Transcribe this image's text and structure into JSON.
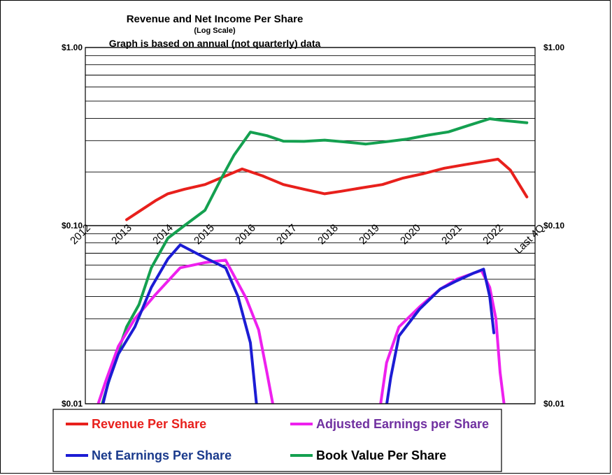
{
  "chart_data": {
    "type": "line",
    "title": "Revenue  and Net Income  Per Share",
    "subtitle": "(Log  Scale)",
    "note": "Graph is based on annual (not quarterly) data",
    "y_scale": "log",
    "ylim": [
      0.01,
      1.0
    ],
    "y_ticks": [
      {
        "value": 1.0,
        "label": "$1.00"
      },
      {
        "value": 0.1,
        "label": "$0.10"
      },
      {
        "value": 0.01,
        "label": "$0.01"
      }
    ],
    "categories": [
      "2012",
      "2013",
      "2014",
      "2015",
      "2016",
      "2017",
      "2018",
      "2019",
      "2020",
      "2021",
      "2022",
      "Last 4Q"
    ],
    "grid": true,
    "legend_position": "bottom",
    "series": [
      {
        "name": "Revenue Per Share",
        "color": "#e8201c",
        "text_color": "#e8201c",
        "points": [
          [
            1.0,
            0.108
          ],
          [
            1.3,
            0.12
          ],
          [
            1.7,
            0.138
          ],
          [
            2.0,
            0.151
          ],
          [
            2.4,
            0.16
          ],
          [
            2.9,
            0.17
          ],
          [
            3.3,
            0.186
          ],
          [
            3.8,
            0.208
          ],
          [
            4.3,
            0.19
          ],
          [
            4.8,
            0.17
          ],
          [
            5.3,
            0.16
          ],
          [
            5.8,
            0.151
          ],
          [
            6.2,
            0.156
          ],
          [
            6.7,
            0.163
          ],
          [
            7.2,
            0.17
          ],
          [
            7.7,
            0.185
          ],
          [
            8.2,
            0.196
          ],
          [
            8.7,
            0.21
          ],
          [
            9.2,
            0.22
          ],
          [
            9.7,
            0.23
          ],
          [
            10.0,
            0.236
          ],
          [
            10.3,
            0.205
          ],
          [
            10.7,
            0.145
          ]
        ]
      },
      {
        "name": "Adjusted Earnings per Share",
        "color": "#ee20ee",
        "text_color": "#7030a0",
        "segments": [
          [
            [
              0.3,
              0.0098
            ],
            [
              0.5,
              0.0135
            ],
            [
              0.8,
              0.021
            ],
            [
              1.2,
              0.03
            ],
            [
              1.7,
              0.041
            ],
            [
              2.3,
              0.058
            ],
            [
              2.9,
              0.062
            ],
            [
              3.4,
              0.064
            ],
            [
              3.9,
              0.039
            ],
            [
              4.2,
              0.026
            ],
            [
              4.4,
              0.015
            ],
            [
              4.55,
              0.0098
            ]
          ],
          [
            [
              7.15,
              0.0098
            ],
            [
              7.3,
              0.017
            ],
            [
              7.6,
              0.027
            ],
            [
              8.1,
              0.035
            ],
            [
              8.6,
              0.044
            ],
            [
              9.0,
              0.05
            ],
            [
              9.4,
              0.054
            ],
            [
              9.6,
              0.056
            ],
            [
              9.8,
              0.045
            ],
            [
              9.95,
              0.03
            ],
            [
              10.05,
              0.015
            ],
            [
              10.15,
              0.0098
            ]
          ]
        ]
      },
      {
        "name": "Net Earnings Per Share",
        "color": "#1c1cd4",
        "text_color": "#1a3a8c",
        "segments": [
          [
            [
              0.42,
              0.0098
            ],
            [
              0.55,
              0.013
            ],
            [
              0.8,
              0.019
            ],
            [
              1.2,
              0.027
            ],
            [
              1.6,
              0.045
            ],
            [
              2.0,
              0.065
            ],
            [
              2.3,
              0.078
            ],
            [
              2.9,
              0.066
            ],
            [
              3.4,
              0.058
            ],
            [
              3.7,
              0.04
            ],
            [
              4.0,
              0.022
            ],
            [
              4.15,
              0.0098
            ]
          ],
          [
            [
              7.3,
              0.0098
            ],
            [
              7.4,
              0.014
            ],
            [
              7.6,
              0.024
            ],
            [
              8.1,
              0.034
            ],
            [
              8.6,
              0.044
            ],
            [
              9.0,
              0.049
            ],
            [
              9.4,
              0.054
            ],
            [
              9.65,
              0.057
            ],
            [
              9.8,
              0.04
            ],
            [
              9.9,
              0.025
            ]
          ]
        ]
      },
      {
        "name": "Book Value Per Share",
        "color": "#14a050",
        "text_color": "#000000",
        "points": [
          [
            0.4,
            0.0098
          ],
          [
            0.7,
            0.017
          ],
          [
            1.0,
            0.027
          ],
          [
            1.3,
            0.036
          ],
          [
            1.6,
            0.058
          ],
          [
            2.0,
            0.085
          ],
          [
            2.4,
            0.1
          ],
          [
            2.9,
            0.122
          ],
          [
            3.3,
            0.185
          ],
          [
            3.6,
            0.248
          ],
          [
            4.0,
            0.335
          ],
          [
            4.4,
            0.32
          ],
          [
            4.8,
            0.298
          ],
          [
            5.3,
            0.297
          ],
          [
            5.8,
            0.302
          ],
          [
            6.3,
            0.295
          ],
          [
            6.8,
            0.287
          ],
          [
            7.3,
            0.296
          ],
          [
            7.8,
            0.306
          ],
          [
            8.3,
            0.322
          ],
          [
            8.8,
            0.336
          ],
          [
            9.3,
            0.366
          ],
          [
            9.8,
            0.398
          ],
          [
            10.1,
            0.39
          ],
          [
            10.7,
            0.378
          ]
        ]
      }
    ]
  }
}
